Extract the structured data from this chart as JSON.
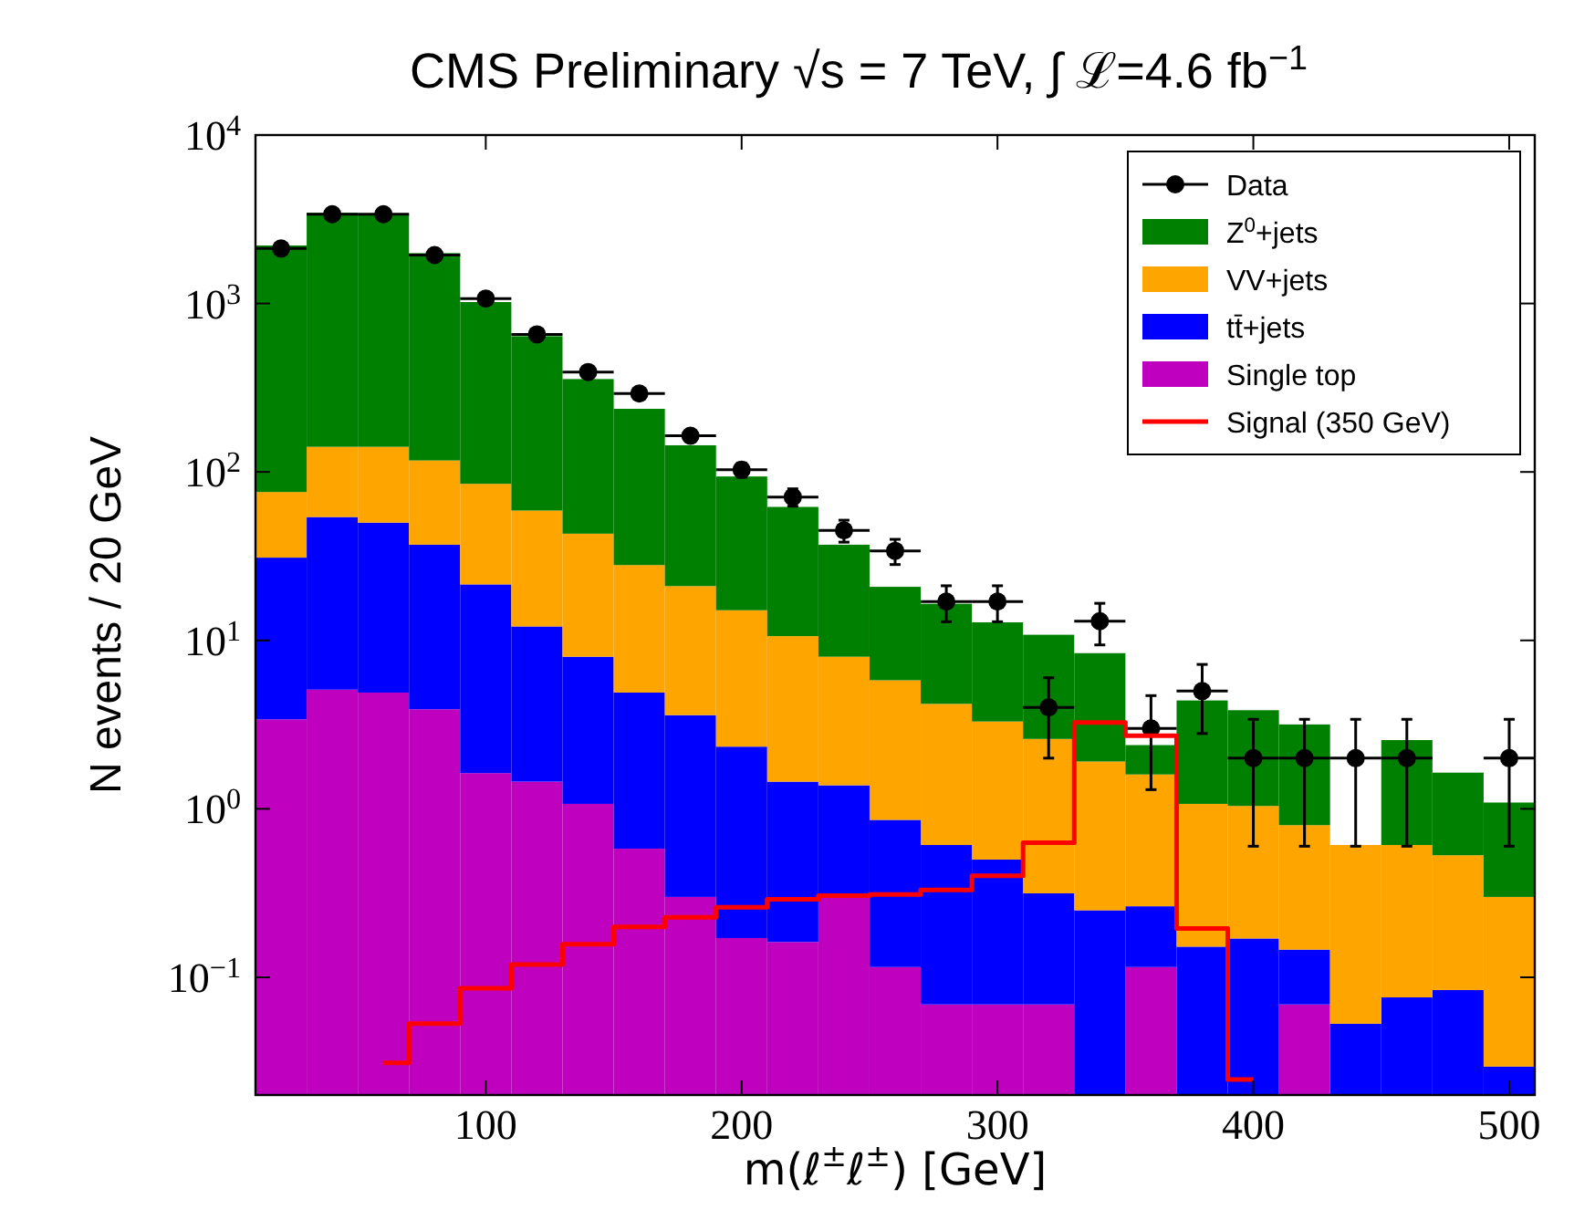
{
  "chart_data": {
    "type": "bar",
    "title": "CMS Preliminary √s = 7 TeV, ∫ ℒ=4.6 fb$^{−1}$",
    "xlabel": "m(ℓ$^{±}$ℓ$^{±}$) [GeV]",
    "ylabel": "N events / 20 GeV",
    "x": [
      20,
      40,
      60,
      80,
      100,
      120,
      140,
      160,
      180,
      200,
      220,
      240,
      260,
      280,
      300,
      320,
      340,
      360,
      380,
      400,
      420,
      440,
      460,
      480,
      500
    ],
    "stacked": true,
    "log": "y",
    "legend": "top right",
    "xlim": [
      10,
      510
    ],
    "xticks": [
      100,
      200,
      300,
      400,
      500
    ],
    "ylim": [
      0.02,
      10000
    ],
    "yticks": [
      {
        "value": 0.1,
        "label": "10$^{−1}$"
      },
      {
        "value": 1,
        "label": "10$^{0}$"
      },
      {
        "value": 10,
        "label": "10$^{1}$"
      },
      {
        "value": 100,
        "label": "10$^{2}$"
      },
      {
        "value": 1000,
        "label": "10$^{3}$"
      },
      {
        "value": 10000,
        "label": "10$^{4}$"
      }
    ],
    "series": [
      {
        "name": "Data",
        "type": "scatter",
        "marker": "circle",
        "color": "#000000",
        "x": [
          20,
          40,
          60,
          80,
          100,
          120,
          140,
          160,
          180,
          200,
          220,
          240,
          260,
          280,
          300,
          320,
          340,
          360,
          380,
          400,
          420,
          440,
          460,
          480,
          500
        ],
        "values": [
          2120,
          3390,
          3390,
          1940,
          1070,
          656,
          392,
          292,
          164,
          103,
          71,
          45,
          34,
          17,
          17,
          4,
          13,
          3,
          5,
          2,
          2,
          2,
          2,
          null,
          2
        ],
        "errors": [
          46,
          58,
          58,
          44,
          33,
          26,
          20,
          17,
          13,
          10,
          8.4,
          6.7,
          5.8,
          4.1,
          4.1,
          2,
          3.6,
          1.7,
          2.2,
          1.4,
          1.4,
          1.4,
          1.4,
          null,
          1.4
        ],
        "xerrors": [
          10,
          10,
          10,
          10,
          10,
          10,
          10,
          10,
          10,
          10,
          10,
          10,
          10,
          10,
          10,
          10,
          10,
          10,
          10,
          10,
          10,
          10,
          10,
          null,
          10
        ]
      },
      {
        "name": "Single top",
        "color": "#bf00bf",
        "values": [
          3.4,
          5.1,
          4.9,
          3.9,
          1.63,
          1.45,
          1.07,
          0.58,
          0.3,
          0.171,
          0.162,
          0.305,
          0.115,
          0.069,
          0.069,
          0.069,
          null,
          0.115,
          null,
          null,
          0.069,
          null,
          null,
          null,
          null
        ]
      },
      {
        "name": "tt̄+jets",
        "color": "#0000ff",
        "values": [
          27.6,
          48.9,
          45.1,
          33.1,
          19.87,
          10.65,
          6.93,
          4.32,
          3.3,
          2.169,
          1.288,
          1.075,
          0.745,
          0.541,
          0.431,
          0.246,
          0.25,
          0.149,
          0.152,
          0.17,
          0.077,
          0.053,
          0.076,
          0.084,
          0.0295
        ]
      },
      {
        "name": "VV+jets",
        "color": "#ffa500",
        "values": [
          45,
          87,
          91,
          80,
          63.5,
          46.9,
          35,
          23.1,
          17.4,
          12.76,
          9.15,
          6.62,
          4.94,
          3.59,
          2.8,
          2.285,
          1.66,
          1.336,
          0.918,
          0.87,
          0.654,
          0.557,
          0.534,
          0.446,
          0.2705
        ]
      },
      {
        "name": "Z$^{0}$+jets",
        "color": "#008000",
        "values": [
          2134,
          3309,
          3249,
          1873,
          935,
          581,
          313,
          209,
          123,
          78.9,
          51.4,
          29,
          15,
          12.3,
          9.5,
          8.2,
          6.49,
          0.79,
          3.33,
          2.81,
          2.37,
          null,
          1.95,
          1.11,
          0.79
        ]
      },
      {
        "name": "Signal (350 GeV)",
        "type": "step",
        "marker": "none",
        "color": "#ff0000",
        "values": [
          null,
          null,
          0.031,
          0.053,
          0.086,
          0.119,
          0.157,
          0.199,
          0.227,
          0.26,
          0.29,
          0.305,
          0.31,
          0.33,
          0.4,
          0.63,
          3.26,
          2.72,
          0.195,
          0.0247,
          null,
          null,
          null,
          null,
          null
        ]
      }
    ]
  }
}
